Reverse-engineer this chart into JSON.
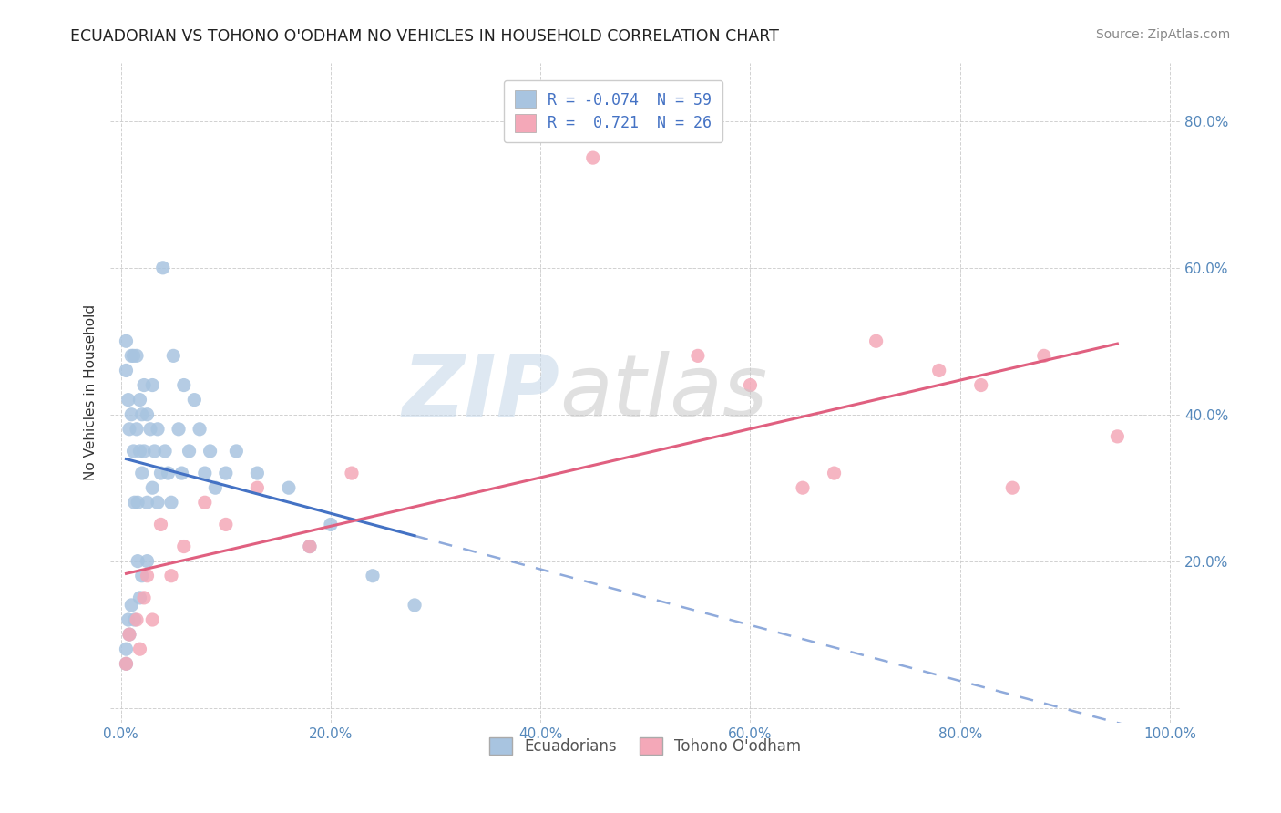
{
  "title": "ECUADORIAN VS TOHONO O'ODHAM NO VEHICLES IN HOUSEHOLD CORRELATION CHART",
  "source": "Source: ZipAtlas.com",
  "ylabel": "No Vehicles in Household",
  "legend_bottom": [
    "Ecuadorians",
    "Tohono O'odham"
  ],
  "r1": -0.074,
  "n1": 59,
  "r2": 0.721,
  "n2": 26,
  "xlim": [
    -0.01,
    1.01
  ],
  "ylim": [
    -0.02,
    0.88
  ],
  "xticks": [
    0.0,
    0.2,
    0.4,
    0.6,
    0.8,
    1.0
  ],
  "yticks": [
    0.0,
    0.2,
    0.4,
    0.6,
    0.8
  ],
  "blue_scatter_color": "#a8c4e0",
  "pink_scatter_color": "#f4a8b8",
  "blue_line_color": "#4472c4",
  "pink_line_color": "#e06080",
  "ecu_x": [
    0.005,
    0.005,
    0.005,
    0.005,
    0.007,
    0.007,
    0.008,
    0.008,
    0.01,
    0.01,
    0.01,
    0.012,
    0.012,
    0.013,
    0.013,
    0.015,
    0.015,
    0.016,
    0.016,
    0.018,
    0.018,
    0.018,
    0.02,
    0.02,
    0.02,
    0.022,
    0.022,
    0.025,
    0.025,
    0.025,
    0.028,
    0.03,
    0.03,
    0.032,
    0.035,
    0.035,
    0.038,
    0.04,
    0.042,
    0.045,
    0.048,
    0.05,
    0.055,
    0.058,
    0.06,
    0.065,
    0.07,
    0.075,
    0.08,
    0.085,
    0.09,
    0.1,
    0.11,
    0.13,
    0.16,
    0.18,
    0.2,
    0.24,
    0.28
  ],
  "ecu_y": [
    0.5,
    0.46,
    0.08,
    0.06,
    0.42,
    0.12,
    0.38,
    0.1,
    0.48,
    0.4,
    0.14,
    0.48,
    0.35,
    0.28,
    0.12,
    0.48,
    0.38,
    0.28,
    0.2,
    0.42,
    0.35,
    0.15,
    0.4,
    0.32,
    0.18,
    0.44,
    0.35,
    0.4,
    0.28,
    0.2,
    0.38,
    0.44,
    0.3,
    0.35,
    0.38,
    0.28,
    0.32,
    0.6,
    0.35,
    0.32,
    0.28,
    0.48,
    0.38,
    0.32,
    0.44,
    0.35,
    0.42,
    0.38,
    0.32,
    0.35,
    0.3,
    0.32,
    0.35,
    0.32,
    0.3,
    0.22,
    0.25,
    0.18,
    0.14
  ],
  "toh_x": [
    0.005,
    0.008,
    0.015,
    0.018,
    0.022,
    0.025,
    0.03,
    0.038,
    0.048,
    0.06,
    0.08,
    0.1,
    0.13,
    0.18,
    0.22,
    0.45,
    0.55,
    0.6,
    0.65,
    0.68,
    0.72,
    0.78,
    0.82,
    0.85,
    0.88,
    0.95
  ],
  "toh_y": [
    0.06,
    0.1,
    0.12,
    0.08,
    0.15,
    0.18,
    0.12,
    0.25,
    0.18,
    0.22,
    0.28,
    0.25,
    0.3,
    0.22,
    0.32,
    0.75,
    0.48,
    0.44,
    0.3,
    0.32,
    0.5,
    0.46,
    0.44,
    0.3,
    0.48,
    0.37
  ]
}
